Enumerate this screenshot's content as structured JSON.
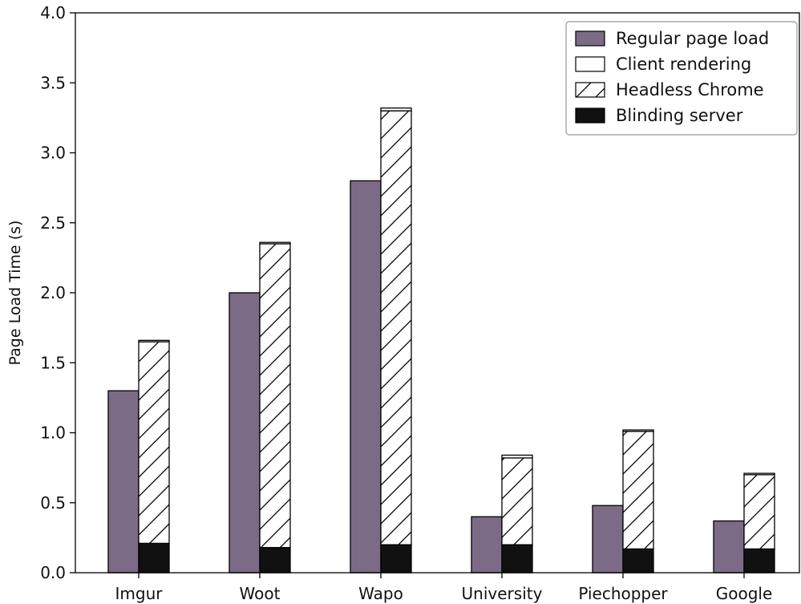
{
  "chart_data": {
    "type": "bar",
    "title": "",
    "xlabel": "",
    "ylabel": "Page Load Time (s)",
    "ylim": [
      0,
      4.0
    ],
    "yticks": [
      "0.0",
      "0.5",
      "1.0",
      "1.5",
      "2.0",
      "2.5",
      "3.0",
      "3.5",
      "4.0"
    ],
    "categories": [
      "Imgur",
      "Woot",
      "Wapo",
      "University",
      "Piechopper",
      "Google"
    ],
    "series": [
      {
        "name": "Regular page load",
        "bar": "left",
        "values": [
          1.3,
          2.0,
          2.8,
          0.4,
          0.48,
          0.37
        ]
      },
      {
        "name": "Client rendering",
        "bar": "right",
        "values": [
          0.01,
          0.01,
          0.02,
          0.02,
          0.01,
          0.01
        ]
      },
      {
        "name": "Headless Chrome",
        "bar": "right",
        "values": [
          1.44,
          2.17,
          3.1,
          0.62,
          0.84,
          0.53
        ]
      },
      {
        "name": "Blinding server",
        "bar": "right",
        "values": [
          0.21,
          0.18,
          0.2,
          0.2,
          0.17,
          0.17
        ]
      }
    ],
    "legend": {
      "placement": "top-right",
      "entries": [
        "Regular page load",
        "Client rendering",
        "Headless Chrome",
        "Blinding server"
      ]
    },
    "grid": false
  },
  "colors": {
    "regular": "#7b6b86",
    "client": "#ffffff",
    "headless": "#ffffff",
    "blinding": "#111111",
    "edge": "#000000"
  }
}
